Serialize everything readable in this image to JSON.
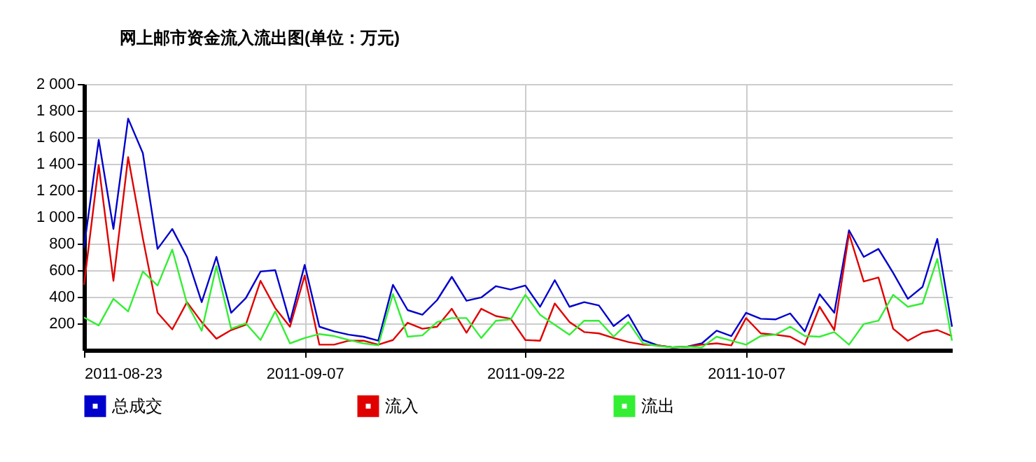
{
  "chart_data": {
    "type": "line",
    "title": "网上邮市资金流入流出图(单位：万元)",
    "x": [
      "2011-08-23",
      "2011-08-24",
      "2011-08-25",
      "2011-08-26",
      "2011-08-27",
      "2011-08-28",
      "2011-08-29",
      "2011-08-30",
      "2011-08-31",
      "2011-09-01",
      "2011-09-02",
      "2011-09-03",
      "2011-09-04",
      "2011-09-05",
      "2011-09-06",
      "2011-09-07",
      "2011-09-08",
      "2011-09-09",
      "2011-09-10",
      "2011-09-11",
      "2011-09-12",
      "2011-09-13",
      "2011-09-14",
      "2011-09-15",
      "2011-09-16",
      "2011-09-17",
      "2011-09-18",
      "2011-09-19",
      "2011-09-20",
      "2011-09-21",
      "2011-09-22",
      "2011-09-23",
      "2011-09-24",
      "2011-09-25",
      "2011-09-26",
      "2011-09-27",
      "2011-09-28",
      "2011-09-29",
      "2011-09-30",
      "2011-10-01",
      "2011-10-02",
      "2011-10-03",
      "2011-10-04",
      "2011-10-05",
      "2011-10-06",
      "2011-10-07",
      "2011-10-08",
      "2011-10-09",
      "2011-10-10",
      "2011-10-11",
      "2011-10-12",
      "2011-10-13",
      "2011-10-14",
      "2011-10-15",
      "2011-10-16",
      "2011-10-17",
      "2011-10-18",
      "2011-10-19",
      "2011-10-20",
      "2011-10-21"
    ],
    "series": [
      {
        "name": "总成交",
        "color": "#0000cc",
        "values": [
          770,
          1580,
          910,
          1740,
          1480,
          760,
          910,
          700,
          360,
          700,
          280,
          390,
          590,
          600,
          210,
          640,
          175,
          140,
          115,
          100,
          70,
          490,
          300,
          265,
          375,
          550,
          370,
          395,
          480,
          455,
          485,
          325,
          525,
          325,
          360,
          335,
          180,
          265,
          75,
          35,
          20,
          25,
          50,
          145,
          105,
          280,
          235,
          230,
          275,
          140,
          420,
          280,
          900,
          700,
          760,
          580,
          385,
          475,
          835,
          175
        ]
      },
      {
        "name": "流入",
        "color": "#e00000",
        "values": [
          490,
          1390,
          520,
          1450,
          840,
          280,
          155,
          360,
          210,
          85,
          150,
          190,
          520,
          315,
          175,
          560,
          40,
          40,
          70,
          70,
          40,
          75,
          205,
          160,
          175,
          310,
          130,
          310,
          255,
          235,
          75,
          70,
          350,
          210,
          135,
          125,
          90,
          60,
          40,
          35,
          20,
          25,
          40,
          50,
          35,
          240,
          125,
          115,
          100,
          40,
          325,
          150,
          875,
          515,
          545,
          160,
          70,
          130,
          150,
          105
        ]
      },
      {
        "name": "流出",
        "color": "#33ee33",
        "values": [
          245,
          185,
          385,
          290,
          590,
          485,
          755,
          350,
          145,
          630,
          160,
          200,
          75,
          290,
          50,
          90,
          120,
          105,
          75,
          50,
          35,
          420,
          100,
          110,
          210,
          240,
          240,
          90,
          220,
          230,
          415,
          265,
          190,
          115,
          220,
          220,
          100,
          210,
          50,
          30,
          20,
          25,
          20,
          100,
          70,
          40,
          105,
          115,
          175,
          105,
          100,
          135,
          40,
          195,
          220,
          415,
          325,
          350,
          685,
          70
        ]
      }
    ],
    "xlim": [
      "2011-08-23",
      "2011-10-21"
    ],
    "xticks": [
      "2011-08-23",
      "2011-09-07",
      "2011-09-22",
      "2011-10-07"
    ],
    "ylim": [
      0,
      2000
    ],
    "yticks": [
      200,
      400,
      600,
      800,
      {
        "value": 1000,
        "label": "1 000"
      },
      {
        "value": 1200,
        "label": "1 200"
      },
      {
        "value": 1400,
        "label": "1 400"
      },
      {
        "value": 1600,
        "label": "1 600"
      },
      {
        "value": 1800,
        "label": "1 800"
      },
      {
        "value": 2000,
        "label": "2 000"
      }
    ],
    "grid": true,
    "legend": "bottom"
  }
}
